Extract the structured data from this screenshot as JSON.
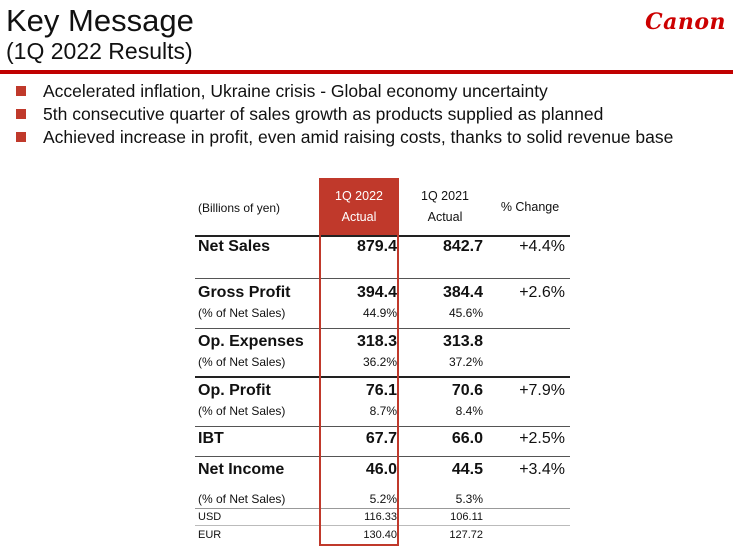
{
  "header": {
    "title": "Key Message",
    "subtitle": "(1Q 2022 Results)",
    "logo_text": "Canon"
  },
  "bullets": [
    "Accelerated inflation, Ukraine crisis - Global economy uncertainty",
    "5th consecutive quarter of sales growth as products supplied as planned",
    "Achieved increase in profit, even amid raising costs, thanks to solid revenue base"
  ],
  "table": {
    "unit_label": "(Billions of yen)",
    "col1": {
      "line1": "1Q 2022",
      "line2": "Actual"
    },
    "col2": {
      "line1": "1Q 2021",
      "line2": "Actual"
    },
    "col3": "% Change",
    "rows": {
      "net_sales": {
        "label": "Net Sales",
        "v1": "879.4",
        "v2": "842.7",
        "chg": "+4.4%"
      },
      "gross_profit": {
        "label": "Gross Profit",
        "v1": "394.4",
        "v2": "384.4",
        "chg": "+2.6%",
        "sub_label": "(% of Net Sales)",
        "sub_v1": "44.9%",
        "sub_v2": "45.6%"
      },
      "op_expenses": {
        "label": "Op. Expenses",
        "v1": "318.3",
        "v2": "313.8",
        "sub_label": "(% of Net Sales)",
        "sub_v1": "36.2%",
        "sub_v2": "37.2%"
      },
      "op_profit": {
        "label": "Op. Profit",
        "v1": "76.1",
        "v2": "70.6",
        "chg": "+7.9%",
        "sub_label": "(% of Net Sales)",
        "sub_v1": "8.7%",
        "sub_v2": "8.4%"
      },
      "ibt": {
        "label": "IBT",
        "v1": "67.7",
        "v2": "66.0",
        "chg": "+2.5%"
      },
      "net_income": {
        "label": "Net Income",
        "v1": "46.0",
        "v2": "44.5",
        "chg": "+3.4%",
        "sub_label": "(% of Net Sales)",
        "sub_v1": "5.2%",
        "sub_v2": "5.3%"
      },
      "usd": {
        "label": "USD",
        "v1": "116.33",
        "v2": "106.11"
      },
      "eur": {
        "label": "EUR",
        "v1": "130.40",
        "v2": "127.72"
      }
    }
  },
  "colors": {
    "accent_red": "#c00000",
    "highlight_red": "#c0392b"
  }
}
